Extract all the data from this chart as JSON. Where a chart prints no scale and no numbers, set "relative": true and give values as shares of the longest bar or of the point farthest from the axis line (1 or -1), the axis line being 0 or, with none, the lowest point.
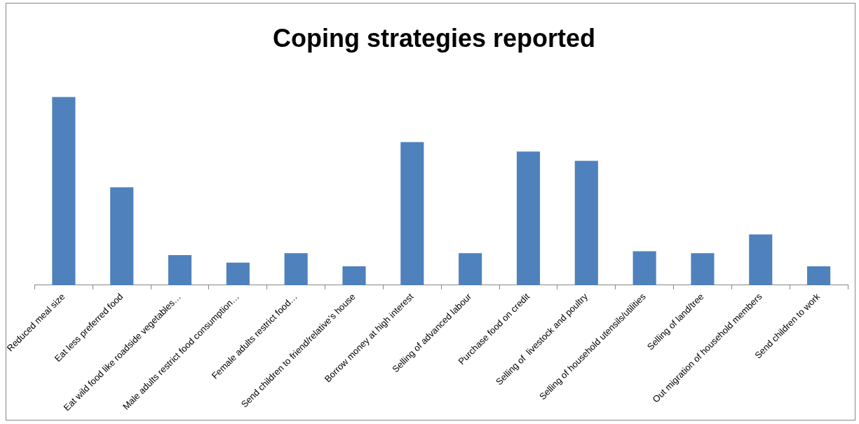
{
  "chart_data": {
    "type": "bar",
    "title": "Coping strategies reported",
    "relative": true,
    "color": "#4f81bd",
    "legend": false,
    "grid": false,
    "categories": [
      "Reduced meal size",
      "Eat less preferred food",
      "Eat wild food like roadside vegetables…",
      "Male adults restrict food consumption…",
      "Female adults restrict food…",
      "Send children to friend/relative’s house",
      "Borrow money at high interest",
      "Selling of advanced labour",
      "Purchase food on credit",
      "Selling of  livestock and poultry",
      "Selling of household utensils/utilities",
      "Selling of land/tree",
      "Out migration of household members",
      "Send children to work"
    ],
    "values": [
      1,
      0.52,
      0.16,
      0.12,
      0.17,
      0.1,
      0.76,
      0.17,
      0.71,
      0.66,
      0.18,
      0.17,
      0.27,
      0.1
    ]
  }
}
